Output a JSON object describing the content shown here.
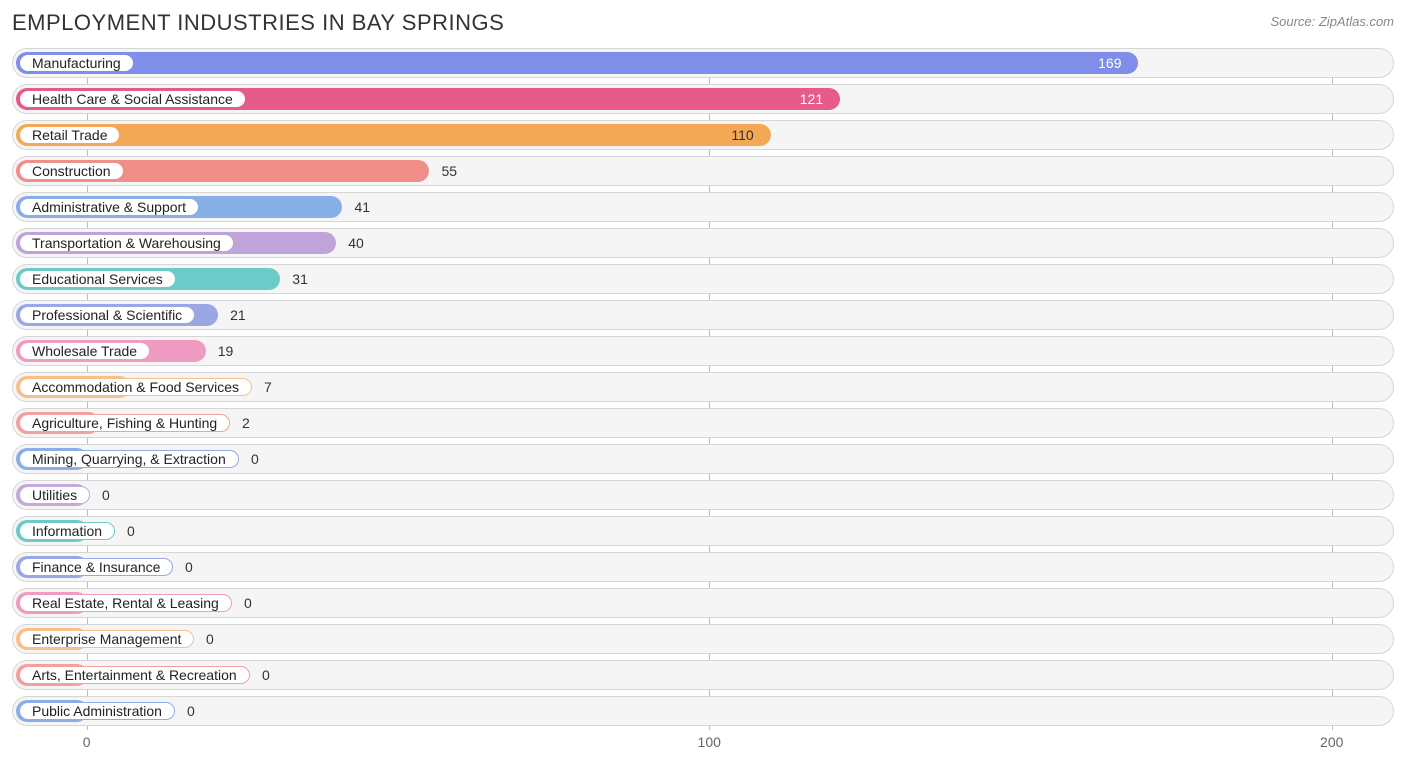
{
  "title": "EMPLOYMENT INDUSTRIES IN BAY SPRINGS",
  "source": "Source: ZipAtlas.com",
  "chart": {
    "type": "bar-horizontal",
    "xmin": -12,
    "xmax": 210,
    "ticks": [
      0,
      100,
      200
    ],
    "track_bg": "#f5f5f5",
    "track_border": "#d6d6d6",
    "grid_color": "#bbbbbb",
    "zero_fill_width": 12,
    "rows": [
      {
        "label": "Manufacturing",
        "value": 169,
        "color": "#7f8ee8",
        "label_inside_fill": true,
        "label_color": "#ffffff"
      },
      {
        "label": "Health Care & Social Assistance",
        "value": 121,
        "color": "#e65a8c",
        "label_inside_fill": true,
        "label_color": "#ffffff"
      },
      {
        "label": "Retail Trade",
        "value": 110,
        "color": "#f3a856",
        "label_inside_fill": true,
        "label_color": "#333333"
      },
      {
        "label": "Construction",
        "value": 55,
        "color": "#f08f8a",
        "label_inside_fill": false,
        "label_color": "#333333"
      },
      {
        "label": "Administrative & Support",
        "value": 41,
        "color": "#88aee6",
        "label_inside_fill": false,
        "label_color": "#333333"
      },
      {
        "label": "Transportation & Warehousing",
        "value": 40,
        "color": "#c0a4d9",
        "label_inside_fill": false,
        "label_color": "#333333"
      },
      {
        "label": "Educational Services",
        "value": 31,
        "color": "#6ccbc9",
        "label_inside_fill": false,
        "label_color": "#333333"
      },
      {
        "label": "Professional & Scientific",
        "value": 21,
        "color": "#9aa7e4",
        "label_inside_fill": false,
        "label_color": "#333333"
      },
      {
        "label": "Wholesale Trade",
        "value": 19,
        "color": "#f09bc2",
        "label_inside_fill": false,
        "label_color": "#333333"
      },
      {
        "label": "Accommodation & Food Services",
        "value": 7,
        "color": "#f7c08b",
        "label_inside_fill": false,
        "label_color": "#333333"
      },
      {
        "label": "Agriculture, Fishing & Hunting",
        "value": 2,
        "color": "#f2a19d",
        "label_inside_fill": false,
        "label_color": "#333333"
      },
      {
        "label": "Mining, Quarrying, & Extraction",
        "value": 0,
        "color": "#8caee4",
        "label_inside_fill": false,
        "label_color": "#333333"
      },
      {
        "label": "Utilities",
        "value": 0,
        "color": "#c3aada",
        "label_inside_fill": false,
        "label_color": "#333333"
      },
      {
        "label": "Information",
        "value": 0,
        "color": "#6ccbc9",
        "label_inside_fill": false,
        "label_color": "#333333"
      },
      {
        "label": "Finance & Insurance",
        "value": 0,
        "color": "#9aa7e4",
        "label_inside_fill": false,
        "label_color": "#333333"
      },
      {
        "label": "Real Estate, Rental & Leasing",
        "value": 0,
        "color": "#f09bc2",
        "label_inside_fill": false,
        "label_color": "#333333"
      },
      {
        "label": "Enterprise Management",
        "value": 0,
        "color": "#f7c08b",
        "label_inside_fill": false,
        "label_color": "#333333"
      },
      {
        "label": "Arts, Entertainment & Recreation",
        "value": 0,
        "color": "#f2a19d",
        "label_inside_fill": false,
        "label_color": "#333333"
      },
      {
        "label": "Public Administration",
        "value": 0,
        "color": "#8caee4",
        "label_inside_fill": false,
        "label_color": "#333333"
      }
    ]
  }
}
